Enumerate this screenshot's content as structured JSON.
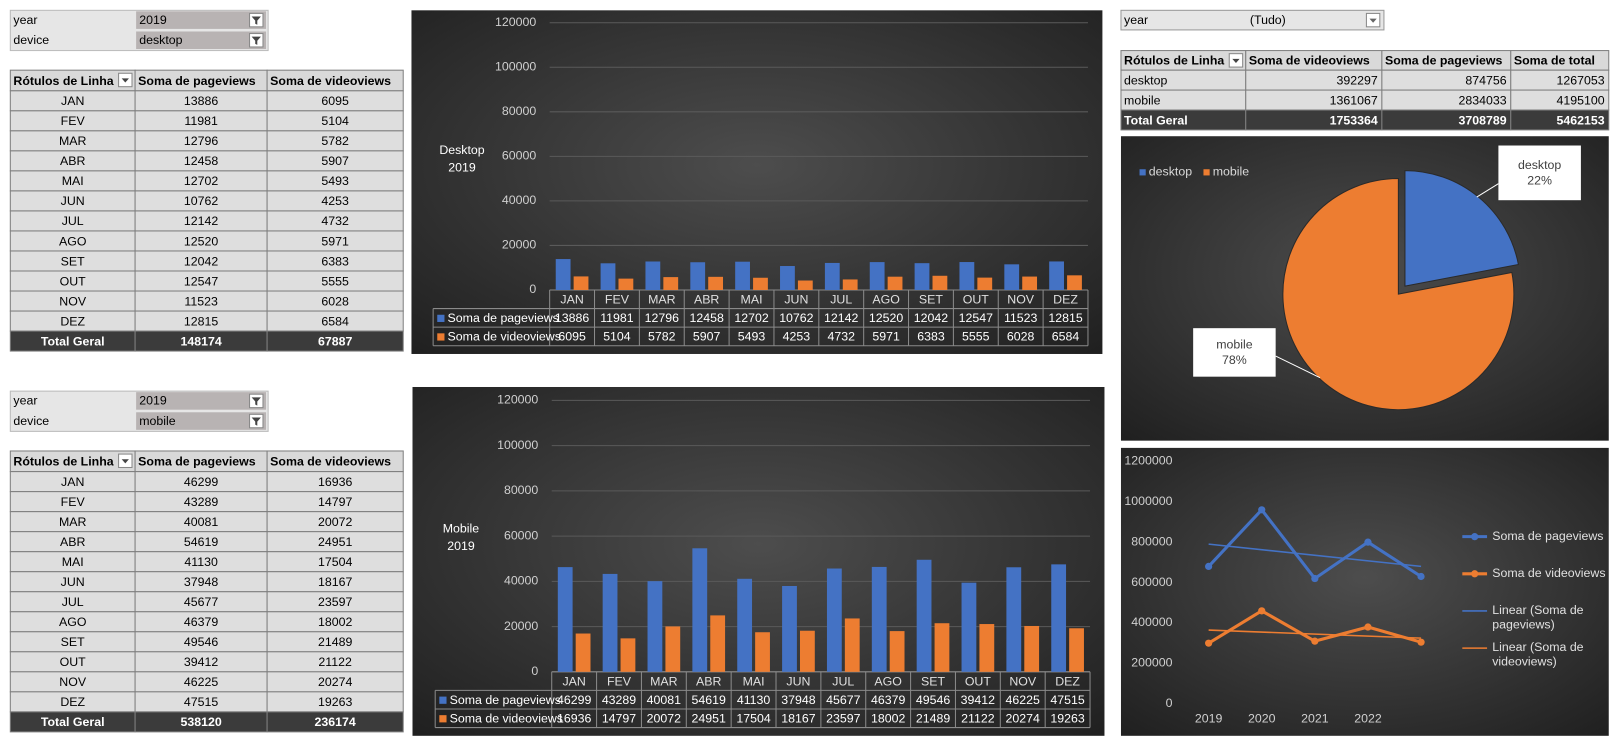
{
  "desktop_filters": [
    {
      "label": "year",
      "value": "2019"
    },
    {
      "label": "device",
      "value": "desktop"
    }
  ],
  "desktop_table": {
    "header": [
      "Rótulos de Linha",
      "Soma de pageviews",
      "Soma de videoviews"
    ],
    "rows": [
      [
        "JAN",
        13886,
        6095
      ],
      [
        "FEV",
        11981,
        5104
      ],
      [
        "MAR",
        12796,
        5782
      ],
      [
        "ABR",
        12458,
        5907
      ],
      [
        "MAI",
        12702,
        5493
      ],
      [
        "JUN",
        10762,
        4253
      ],
      [
        "JUL",
        12142,
        4732
      ],
      [
        "AGO",
        12520,
        5971
      ],
      [
        "SET",
        12042,
        6383
      ],
      [
        "OUT",
        12547,
        5555
      ],
      [
        "NOV",
        11523,
        6028
      ],
      [
        "DEZ",
        12815,
        6584
      ]
    ],
    "total": [
      "Total Geral",
      148174,
      67887
    ]
  },
  "mobile_filters": [
    {
      "label": "year",
      "value": "2019"
    },
    {
      "label": "device",
      "value": "mobile"
    }
  ],
  "mobile_table": {
    "header": [
      "Rótulos de Linha",
      "Soma de pageviews",
      "Soma de videoviews"
    ],
    "rows": [
      [
        "JAN",
        46299,
        16936
      ],
      [
        "FEV",
        43289,
        14797
      ],
      [
        "MAR",
        40081,
        20072
      ],
      [
        "ABR",
        54619,
        24951
      ],
      [
        "MAI",
        41130,
        17504
      ],
      [
        "JUN",
        37948,
        18167
      ],
      [
        "JUL",
        45677,
        23597
      ],
      [
        "AGO",
        46379,
        18002
      ],
      [
        "SET",
        49546,
        21489
      ],
      [
        "OUT",
        39412,
        21122
      ],
      [
        "NOV",
        46225,
        20274
      ],
      [
        "DEZ",
        47515,
        19263
      ]
    ],
    "total": [
      "Total Geral",
      538120,
      236174
    ]
  },
  "summary_filter": {
    "label": "year",
    "value": "(Tudo)"
  },
  "summary_table": {
    "header": [
      "Rótulos de Linha",
      "Soma de videoviews",
      "Soma de pageviews",
      "Soma de total"
    ],
    "rows": [
      [
        "desktop",
        392297,
        874756,
        1267053
      ],
      [
        "mobile",
        1361067,
        2834033,
        4195100
      ]
    ],
    "total": [
      "Total Geral",
      1753364,
      3708789,
      5462153
    ]
  },
  "chart_data": [
    {
      "type": "bar",
      "title": "Desktop",
      "subtitle": "2019",
      "categories": [
        "JAN",
        "FEV",
        "MAR",
        "ABR",
        "MAI",
        "JUN",
        "JUL",
        "AGO",
        "SET",
        "OUT",
        "NOV",
        "DEZ"
      ],
      "series": [
        {
          "name": "Soma de pageviews",
          "color": "#4472c4",
          "values": [
            13886,
            11981,
            12796,
            12458,
            12702,
            10762,
            12142,
            12520,
            12042,
            12547,
            11523,
            12815
          ]
        },
        {
          "name": "Soma de videoviews",
          "color": "#ed7d31",
          "values": [
            6095,
            5104,
            5782,
            5907,
            5493,
            4253,
            4732,
            5971,
            6383,
            5555,
            6028,
            6584
          ]
        }
      ],
      "ylim": [
        0,
        120000
      ],
      "yticks": [
        0,
        20000,
        40000,
        60000,
        80000,
        100000,
        120000
      ],
      "grid": true
    },
    {
      "type": "bar",
      "title": "Mobile",
      "subtitle": "2019",
      "categories": [
        "JAN",
        "FEV",
        "MAR",
        "ABR",
        "MAI",
        "JUN",
        "JUL",
        "AGO",
        "SET",
        "OUT",
        "NOV",
        "DEZ"
      ],
      "series": [
        {
          "name": "Soma de pageviews",
          "color": "#4472c4",
          "values": [
            46299,
            43289,
            40081,
            54619,
            41130,
            37948,
            45677,
            46379,
            49546,
            39412,
            46225,
            47515
          ]
        },
        {
          "name": "Soma de videoviews",
          "color": "#ed7d31",
          "values": [
            16936,
            14797,
            20072,
            24951,
            17504,
            18167,
            23597,
            18002,
            21489,
            21122,
            20274,
            19263
          ]
        }
      ],
      "ylim": [
        0,
        120000
      ],
      "yticks": [
        0,
        20000,
        40000,
        60000,
        80000,
        100000,
        120000
      ],
      "grid": true
    },
    {
      "type": "pie",
      "categories": [
        "desktop",
        "mobile"
      ],
      "values": [
        22,
        78
      ],
      "value_labels": [
        "22%",
        "78%"
      ],
      "colors": [
        "#4472c4",
        "#ed7d31"
      ],
      "legend": "top-left"
    },
    {
      "type": "line",
      "categories": [
        "2019",
        "2020",
        "2021",
        "2022",
        null
      ],
      "series": [
        {
          "name": "Soma de pageviews",
          "color": "#4472c4",
          "values": [
            680000,
            960000,
            620000,
            800000,
            630000
          ]
        },
        {
          "name": "Soma de videoviews",
          "color": "#ed7d31",
          "values": [
            300000,
            460000,
            310000,
            380000,
            305000
          ]
        }
      ],
      "trendlines": [
        {
          "name": "Linear (Soma de pageviews)",
          "color": "#4472c4",
          "values": [
            790000,
            680000
          ]
        },
        {
          "name": "Linear (Soma de videoviews)",
          "color": "#ed7d31",
          "values": [
            365000,
            325000
          ]
        }
      ],
      "ylim": [
        0,
        1200000
      ],
      "yticks": [
        0,
        200000,
        400000,
        600000,
        800000,
        1000000,
        1200000
      ],
      "grid": false,
      "legend": "right"
    }
  ]
}
